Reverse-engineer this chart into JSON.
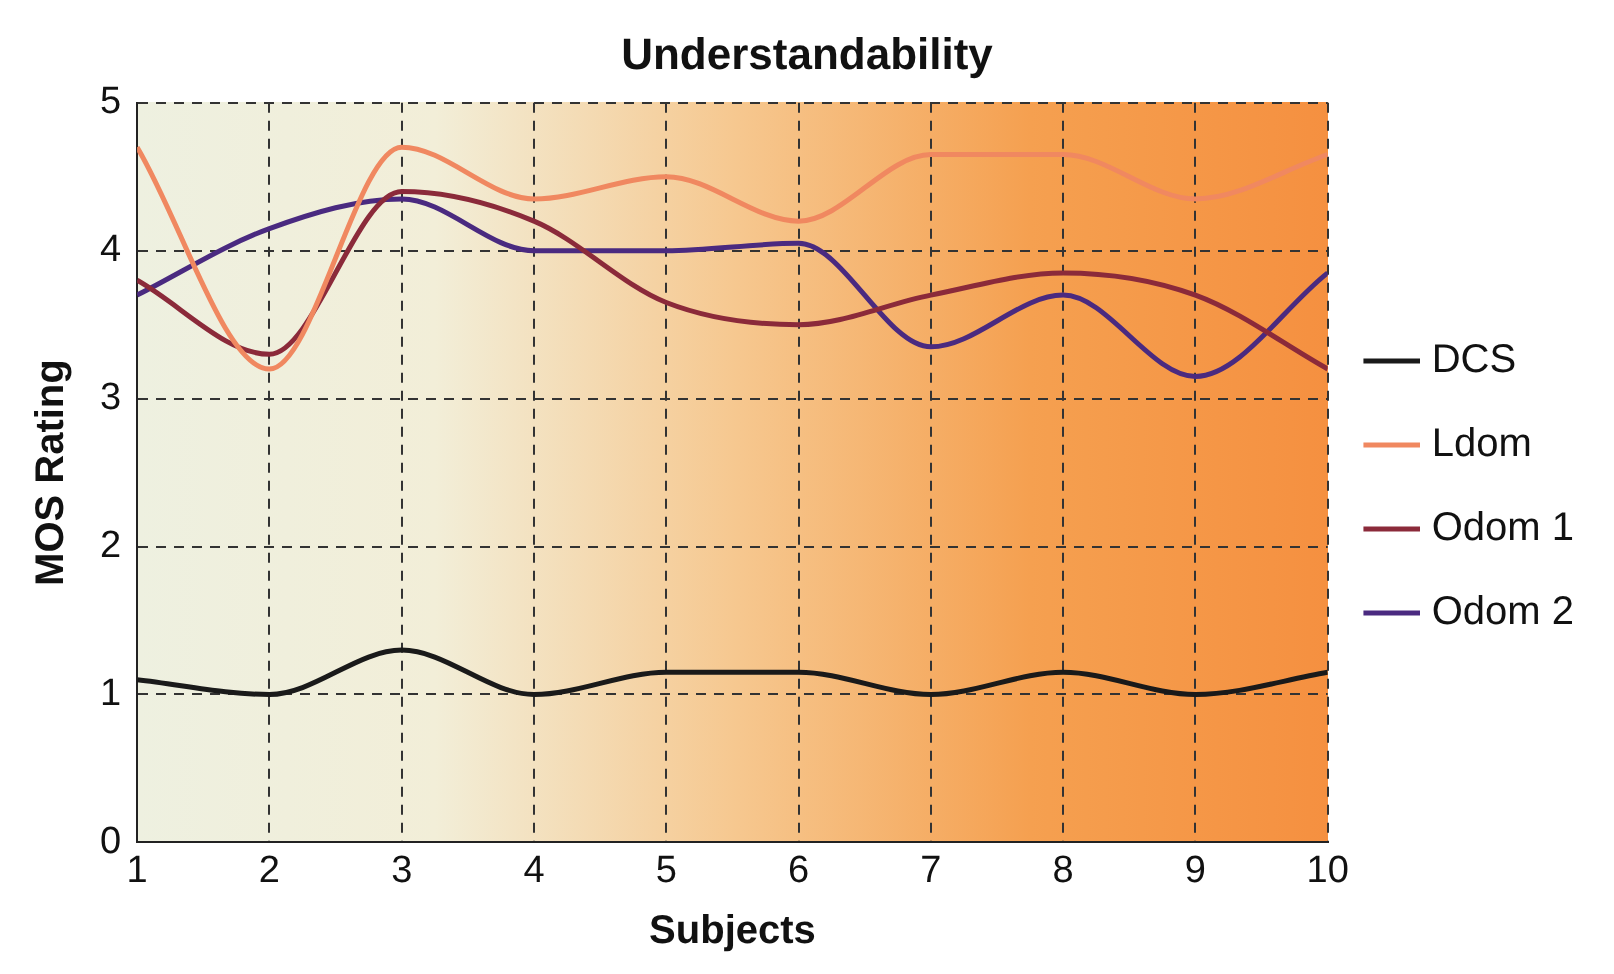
{
  "chart_data": {
    "type": "line",
    "title": "Understandability",
    "xlabel": "Subjects",
    "ylabel": "MOS Rating",
    "x": [
      1,
      2,
      3,
      4,
      5,
      6,
      7,
      8,
      9,
      10
    ],
    "series": [
      {
        "name": "DCS",
        "color": "#1a1a1a",
        "values": [
          1.1,
          1.0,
          1.3,
          1.0,
          1.15,
          1.15,
          1.0,
          1.15,
          1.0,
          1.15
        ]
      },
      {
        "name": "Ldom",
        "color": "#f08860",
        "values": [
          4.7,
          3.2,
          4.7,
          4.35,
          4.5,
          4.2,
          4.65,
          4.65,
          4.35,
          4.65
        ]
      },
      {
        "name": "Odom 1",
        "color": "#8b2a3a",
        "values": [
          3.8,
          3.3,
          4.4,
          4.2,
          3.65,
          3.5,
          3.7,
          3.85,
          3.7,
          3.2
        ]
      },
      {
        "name": "Odom 2",
        "color": "#4a2a80",
        "values": [
          3.7,
          4.15,
          4.35,
          4.0,
          4.0,
          4.05,
          3.35,
          3.7,
          3.15,
          3.85
        ]
      }
    ],
    "xlim": [
      1,
      10
    ],
    "xticks": [
      1,
      2,
      3,
      4,
      5,
      6,
      7,
      8,
      9,
      10
    ],
    "ylim": [
      0,
      5
    ],
    "yticks": [
      0,
      1,
      2,
      3,
      4,
      5
    ],
    "grid": true,
    "legend": "right",
    "marker": "none",
    "line_style": "solid"
  }
}
